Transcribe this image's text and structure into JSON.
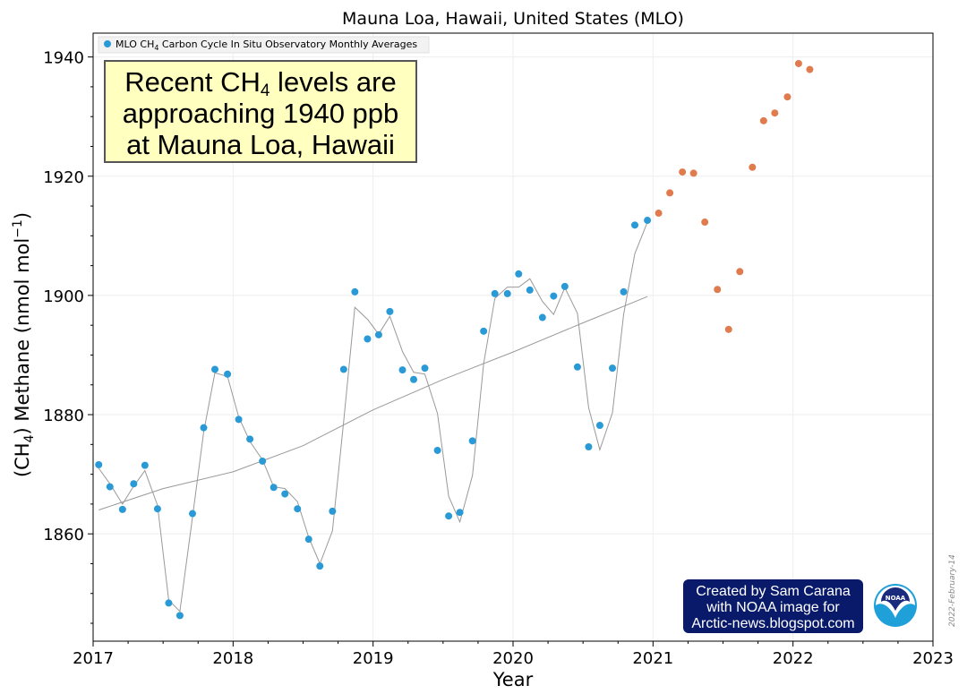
{
  "chart_data": {
    "type": "scatter",
    "title": "Mauna Loa, Hawaii, United States (MLO)",
    "xlabel": "Year",
    "ylabel_prefix": "(CH",
    "ylabel_sub": "4",
    "ylabel_mid": ") Methane (nmol mol",
    "ylabel_sup": "−1",
    "ylabel_suffix": ")",
    "xlim": [
      2017,
      2023
    ],
    "ylim": [
      1842,
      1944
    ],
    "xticks": [
      2017,
      2018,
      2019,
      2020,
      2021,
      2022,
      2023
    ],
    "yticks": [
      1860,
      1880,
      1900,
      1920,
      1940
    ],
    "grid": true,
    "legend_placement": "top-left",
    "legend_label_prefix": "MLO CH",
    "legend_label_sub": "4",
    "legend_label_suffix": " Carbon Cycle In Situ Observatory Monthly Averages",
    "colors": {
      "noaa_points": "#2a9ad6",
      "added_points": "#e07b4e",
      "monthly_line": "#999999",
      "trend_line": "#999999"
    },
    "series": [
      {
        "name": "MLO CH4 Carbon Cycle In Situ Observatory Monthly Averages",
        "x": [
          2017.04,
          2017.12,
          2017.21,
          2017.29,
          2017.37,
          2017.46,
          2017.54,
          2017.62,
          2017.71,
          2017.79,
          2017.87,
          2017.96,
          2018.04,
          2018.12,
          2018.21,
          2018.29,
          2018.37,
          2018.46,
          2018.54,
          2018.62,
          2018.71,
          2018.79,
          2018.87,
          2018.96,
          2019.04,
          2019.12,
          2019.21,
          2019.29,
          2019.37,
          2019.46,
          2019.54,
          2019.62,
          2019.71,
          2019.79,
          2019.87,
          2019.96,
          2020.04,
          2020.12,
          2020.21,
          2020.29,
          2020.37,
          2020.46,
          2020.54,
          2020.62,
          2020.71,
          2020.79,
          2020.87,
          2020.96
        ],
        "values": [
          1871.6,
          1867.9,
          1864.1,
          1868.4,
          1871.5,
          1864.2,
          1848.4,
          1846.3,
          1863.4,
          1877.8,
          1887.6,
          1886.8,
          1879.2,
          1875.9,
          1872.2,
          1867.8,
          1866.7,
          1864.2,
          1859.1,
          1854.6,
          1863.8,
          1887.6,
          1900.6,
          1892.7,
          1893.4,
          1897.3,
          1887.5,
          1885.9,
          1887.8,
          1874.0,
          1863.0,
          1863.6,
          1875.6,
          1894.0,
          1900.3,
          1900.3,
          1903.6,
          1900.9,
          1896.3,
          1899.9,
          1901.5,
          1888.0,
          1874.6,
          1878.2,
          1887.8,
          1900.6,
          1911.8,
          1912.6
        ]
      },
      {
        "name": "",
        "x": [
          2021.04,
          2021.12,
          2021.21,
          2021.29,
          2021.37,
          2021.46,
          2021.54,
          2021.62,
          2021.71,
          2021.79,
          2021.87,
          2021.96,
          2022.04,
          2022.12
        ],
        "values": [
          1913.8,
          1917.2,
          1920.7,
          1920.5,
          1912.3,
          1901.0,
          1894.3,
          1904.0,
          1921.5,
          1929.3,
          1930.6,
          1933.3,
          1938.9,
          1937.9
        ]
      },
      {
        "name": "",
        "x": [
          2017.04,
          2017.12,
          2017.21,
          2017.29,
          2017.37,
          2017.46,
          2017.54,
          2017.62,
          2017.71,
          2017.79,
          2017.87,
          2017.96,
          2018.04,
          2018.12,
          2018.21,
          2018.29,
          2018.37,
          2018.46,
          2018.54,
          2018.62,
          2018.71,
          2018.79,
          2018.87,
          2018.96,
          2019.04,
          2019.12,
          2019.21,
          2019.29,
          2019.37,
          2019.46,
          2019.54,
          2019.62,
          2019.71,
          2019.79,
          2019.87,
          2019.96,
          2020.04,
          2020.12,
          2020.21,
          2020.29,
          2020.37,
          2020.46,
          2020.54,
          2020.62,
          2020.71,
          2020.79,
          2020.87,
          2020.96
        ],
        "values": [
          1871.0,
          1868.4,
          1865.0,
          1868.0,
          1870.6,
          1864.8,
          1848.9,
          1847.0,
          1862.8,
          1877.1,
          1887.0,
          1886.4,
          1879.6,
          1875.5,
          1872.4,
          1867.9,
          1867.6,
          1865.4,
          1859.4,
          1855.0,
          1860.5,
          1878.8,
          1898.0,
          1896.0,
          1893.5,
          1896.5,
          1890.6,
          1887.1,
          1886.8,
          1880.2,
          1866.3,
          1862.0,
          1869.8,
          1888.6,
          1899.5,
          1901.4,
          1901.4,
          1902.8,
          1899.0,
          1896.8,
          1901.3,
          1897.0,
          1881.2,
          1874.1,
          1880.3,
          1896.8,
          1907.0,
          1912.3
        ]
      },
      {
        "name": "",
        "x": [
          2017.04,
          2017.5,
          2018.0,
          2018.5,
          2019.0,
          2019.5,
          2020.0,
          2020.5,
          2020.96
        ],
        "values": [
          1864.0,
          1867.6,
          1870.4,
          1874.8,
          1880.8,
          1885.9,
          1890.5,
          1895.4,
          1899.8
        ]
      }
    ]
  },
  "callout": {
    "line1_prefix": "Recent CH",
    "line1_sub": "4",
    "line1_suffix": " levels are",
    "line2": "approaching 1940 ppb",
    "line3": "at Mauna Loa, Hawaii"
  },
  "credit": {
    "line1": "Created by Sam Carana",
    "line2": "with NOAA image for",
    "line3": "Arctic-news.blogspot.com"
  },
  "logo_text": "NOAA",
  "date_stamp": "2022-February-14"
}
